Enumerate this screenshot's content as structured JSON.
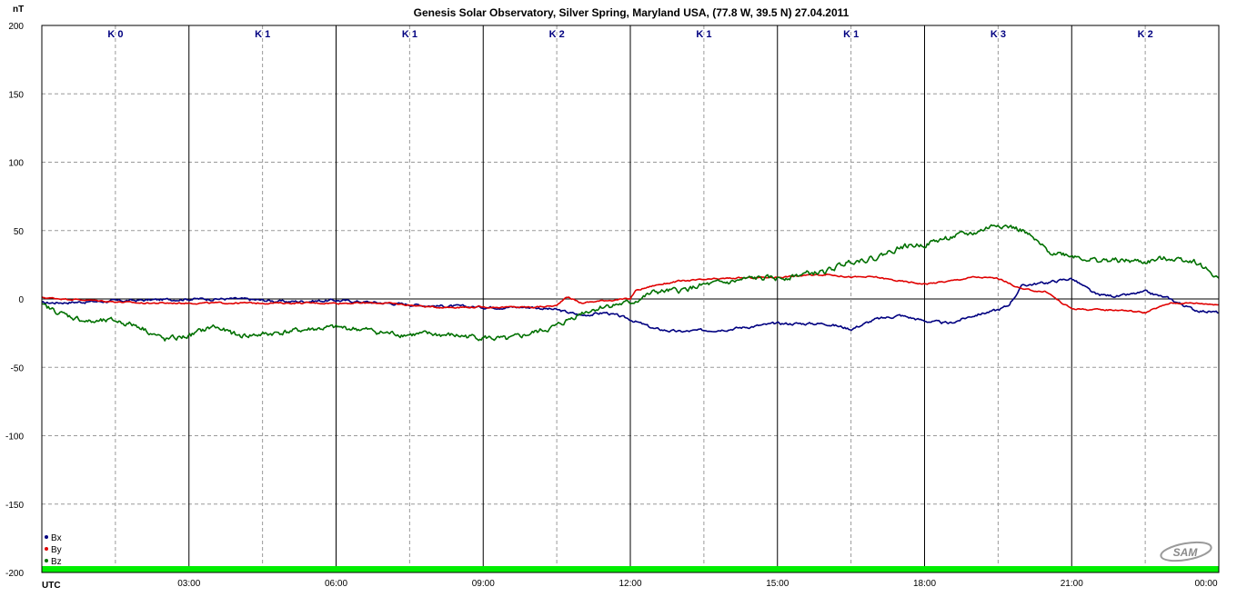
{
  "chart_data": {
    "type": "line",
    "title": "Genesis Solar Observatory, Silver Spring, Maryland USA, (77.8 W, 39.5 N)  27.04.2011",
    "ylabel": "nT",
    "xlabel": "UTC",
    "ylim": [
      -200,
      200
    ],
    "xlim_hours": [
      0,
      24
    ],
    "y_ticks": [
      200,
      150,
      100,
      50,
      0,
      -50,
      -100,
      -150,
      -200
    ],
    "x_tick_labels": [
      "03:00",
      "06:00",
      "09:00",
      "12:00",
      "15:00",
      "18:00",
      "21:00",
      "00:00"
    ],
    "grid": true,
    "k_index": [
      "K 0",
      "K 1",
      "K 1",
      "K 2",
      "K 1",
      "K 1",
      "K 3",
      "K 2"
    ],
    "legend_position": "bottom-left",
    "series": [
      {
        "name": "Bx",
        "color": "#000080",
        "x_hours": [
          0,
          1,
          2,
          3,
          4,
          5,
          6,
          7,
          8,
          9,
          10,
          10.5,
          11,
          11.5,
          12,
          12.5,
          13,
          14,
          15,
          16,
          16.5,
          17,
          17.5,
          18,
          18.5,
          19,
          19.5,
          19.7,
          20,
          20.5,
          21,
          21.5,
          22,
          22.5,
          23,
          23.5,
          24
        ],
        "values": [
          -3,
          -2,
          -1,
          0,
          0,
          -2,
          -1,
          -3,
          -5,
          -6,
          -6,
          -8,
          -12,
          -10,
          -15,
          -22,
          -24,
          -22,
          -18,
          -18,
          -22,
          -15,
          -12,
          -16,
          -18,
          -12,
          -8,
          -5,
          10,
          12,
          15,
          3,
          2,
          5,
          0,
          -8,
          -10
        ]
      },
      {
        "name": "By",
        "color": "#e00000",
        "x_hours": [
          0,
          1,
          2,
          3,
          4,
          5,
          6,
          7,
          8,
          9,
          10,
          10.5,
          10.7,
          11,
          11.5,
          12,
          12.1,
          12.5,
          13,
          14,
          15,
          16,
          16.5,
          17,
          17.5,
          18,
          18.5,
          19,
          19.5,
          20,
          20.5,
          20.8,
          21,
          21.5,
          22,
          22.5,
          23,
          23.5,
          24
        ],
        "values": [
          1,
          -1,
          -3,
          -3,
          -3,
          -3,
          -3,
          -3,
          -6,
          -6,
          -6,
          -5,
          2,
          -3,
          -1,
          0,
          6,
          10,
          13,
          15,
          16,
          18,
          16,
          16,
          13,
          11,
          13,
          16,
          15,
          7,
          5,
          -3,
          -7,
          -8,
          -8,
          -10,
          -3,
          -3,
          -4
        ]
      },
      {
        "name": "Bz",
        "color": "#007000",
        "x_hours": [
          0,
          0.5,
          1,
          1.5,
          2,
          2.5,
          3,
          3.5,
          4,
          4.5,
          5,
          5.5,
          6,
          6.5,
          7,
          7.5,
          8,
          8.5,
          9,
          9.5,
          10,
          10.5,
          11,
          11.5,
          12,
          12.5,
          13,
          13.5,
          14,
          14.5,
          15,
          15.5,
          16,
          16.5,
          17,
          17.5,
          18,
          18.5,
          19,
          19.5,
          20,
          20.5,
          21,
          21.5,
          22,
          22.5,
          23,
          23.5,
          24
        ],
        "values": [
          -5,
          -12,
          -17,
          -16,
          -20,
          -30,
          -27,
          -20,
          -27,
          -26,
          -24,
          -22,
          -21,
          -22,
          -25,
          -26,
          -26,
          -27,
          -28,
          -30,
          -25,
          -20,
          -10,
          -5,
          -3,
          5,
          6,
          10,
          12,
          15,
          15,
          18,
          20,
          28,
          30,
          38,
          40,
          45,
          48,
          55,
          50,
          35,
          32,
          28,
          28,
          27,
          30,
          28,
          15
        ]
      }
    ]
  },
  "watermark": "SAM"
}
